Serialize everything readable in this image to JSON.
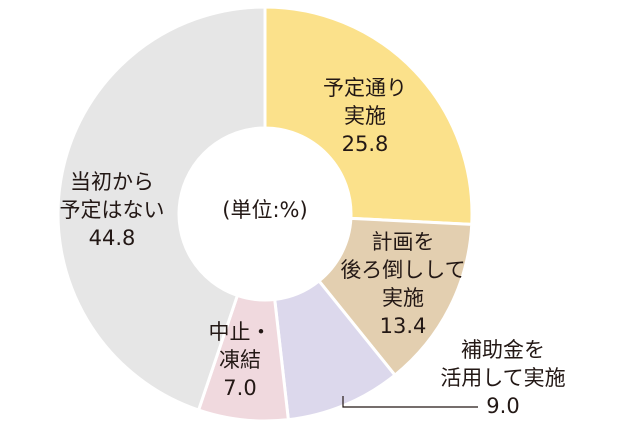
{
  "chart_data": {
    "type": "pie",
    "variant": "donut",
    "center_label": "(単位:%)",
    "slices": [
      {
        "label_lines": [
          "予定通り",
          "実施"
        ],
        "value": 25.8,
        "value_text": "25.8",
        "color": "#fbe18b"
      },
      {
        "label_lines": [
          "計画を",
          "後ろ倒しして",
          "実施"
        ],
        "value": 13.4,
        "value_text": "13.4",
        "color": "#e3cfb0"
      },
      {
        "label_lines": [
          "補助金を",
          "活用して実施"
        ],
        "value": 9.0,
        "value_text": "9.0",
        "color": "#dcd8ec"
      },
      {
        "label_lines": [
          "中止・",
          "凍結"
        ],
        "value": 7.0,
        "value_text": "7.0",
        "color": "#f0d9de"
      },
      {
        "label_lines": [
          "当初から",
          "予定はない"
        ],
        "value": 44.8,
        "value_text": "44.8",
        "color": "#e6e6e6"
      }
    ]
  }
}
